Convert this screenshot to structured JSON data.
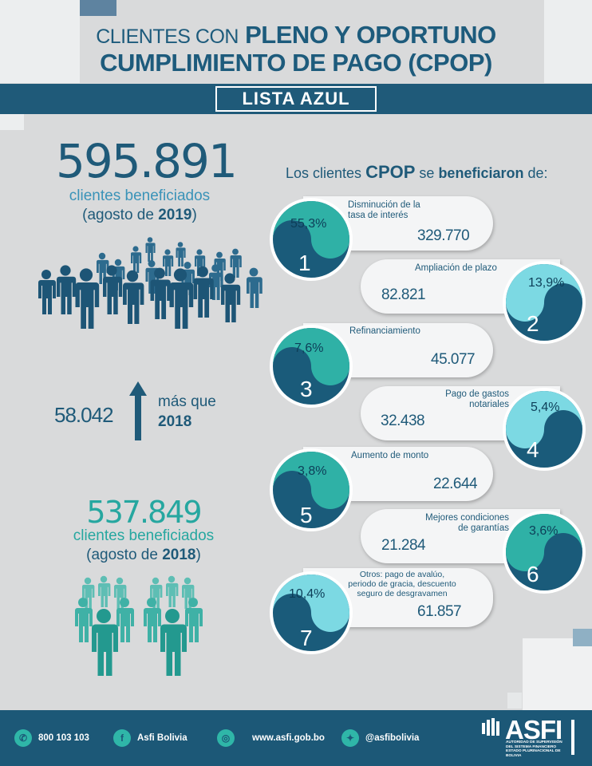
{
  "header": {
    "title_light": "CLIENTES CON",
    "title_bold1": "PLENO Y OPORTUNO",
    "title_bold2": "CUMPLIMIENTO DE PAGO (CPOP)",
    "banner": "LISTA AZUL"
  },
  "stats_2019": {
    "count": "595.891",
    "label": "clientes beneficiados",
    "period_prefix": "(agosto de ",
    "year": "2019",
    "period_suffix": ")"
  },
  "difference": {
    "value": "58.042",
    "label_line1": "más que",
    "label_year": "2018"
  },
  "stats_2018": {
    "count": "537.849",
    "label": "clientes beneficiados",
    "period_prefix": "(agosto de ",
    "year": "2018",
    "period_suffix": ")"
  },
  "benefits": {
    "heading_pre": "Los clientes ",
    "heading_brand": "CPOP",
    "heading_mid": " se ",
    "heading_bold": "beneficiaron",
    "heading_post": " de:",
    "items": [
      {
        "number": "1",
        "percent": "55,3%",
        "label_line1": "Disminución de la",
        "label_line2": "tasa de interés",
        "label_line3": "",
        "value": "329.770"
      },
      {
        "number": "2",
        "percent": "13,9%",
        "label_line1": "Ampliación de plazo",
        "label_line2": "",
        "label_line3": "",
        "value": "82.821"
      },
      {
        "number": "3",
        "percent": "7,6%",
        "label_line1": "Refinanciamiento",
        "label_line2": "",
        "label_line3": "",
        "value": "45.077"
      },
      {
        "number": "4",
        "percent": "5,4%",
        "label_line1": "Pago de gastos",
        "label_line2": "notariales",
        "label_line3": "",
        "value": "32.438"
      },
      {
        "number": "5",
        "percent": "3,8%",
        "label_line1": "Aumento de monto",
        "label_line2": "",
        "label_line3": "",
        "value": "22.644"
      },
      {
        "number": "6",
        "percent": "3,6%",
        "label_line1": "Mejores condiciones",
        "label_line2": "de garantías",
        "label_line3": "",
        "value": "21.284"
      },
      {
        "number": "7",
        "percent": "10,4%",
        "label_line1": "Otros: pago de avalúo,",
        "label_line2": "periodo de gracia, descuento",
        "label_line3": "seguro de desgravamen",
        "value": "61.857"
      }
    ]
  },
  "footer": {
    "phone": "800 103 103",
    "facebook": "Asfi Bolivia",
    "website": "www.asfi.gob.bo",
    "twitter": "@asfibolivia",
    "logo_text": "ASFI",
    "logo_sub1": "AUTORIDAD DE SUPERVISIÓN",
    "logo_sub2": "DEL SISTEMA FINANCIERO",
    "logo_sub3": "ESTADO PLURINACIONAL DE BOLIVIA"
  },
  "colors": {
    "navy": "#1f5a79",
    "teal": "#26a7a0",
    "light_teal": "#5fd3d1",
    "background": "#d9dadb"
  }
}
